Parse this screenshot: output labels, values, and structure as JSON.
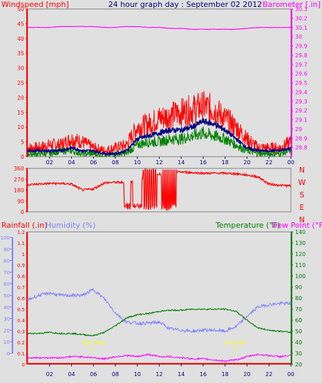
{
  "header": {
    "wind_label": "Windspeed [mph]",
    "title": "24 hour graph day : September 02 2012",
    "baro_label": "Barometer [.in]"
  },
  "panel3_labels": {
    "rain_label": "Rainfall (.in)",
    "humidity_label": "Humidity (%)",
    "temp_label": "Temperature (°F)",
    "dew_label": "Dew Point (°F)",
    "sunrise_label": "Sun Rise",
    "sunset_label": "Sun Set"
  },
  "colors": {
    "background": "#e0e0e0",
    "wind": "#ff0000",
    "wind_avg": "#000080",
    "wind_low": "#008000",
    "barometer": "#ff00ff",
    "direction": "#ff0000",
    "rain": "#ff0000",
    "humidity": "#8080ff",
    "temperature": "#008000",
    "dewpoint": "#ff00ff",
    "sun": "#ffff00",
    "title": "#000080"
  },
  "chart_data": [
    {
      "type": "line",
      "title": "24 hour graph day : September 02 2012",
      "x_ticks": [
        "02",
        "04",
        "06",
        "08",
        "10",
        "12",
        "14",
        "16",
        "18",
        "20",
        "22",
        "00"
      ],
      "ylabel": "Windspeed [mph]",
      "ylim": [
        0,
        50
      ],
      "y_ticks": [
        "0",
        "5",
        "10",
        "15",
        "20",
        "25",
        "30",
        "35",
        "40",
        "45",
        "50"
      ],
      "y2label": "Barometer [.in]",
      "y2lim": [
        28.7,
        30.3
      ],
      "y2_ticks": [
        "28.8",
        "28.9",
        "29",
        "29.1",
        "29.2",
        "29.3",
        "29.4",
        "29.5",
        "29.6",
        "29.7",
        "29.8",
        "29.9",
        "30",
        "30.1",
        "30.2",
        "30.3"
      ],
      "hours": [
        0,
        1,
        2,
        3,
        4,
        5,
        6,
        7,
        8,
        9,
        10,
        11,
        12,
        13,
        14,
        15,
        16,
        17,
        18,
        19,
        20,
        21,
        22,
        23,
        24
      ],
      "series": [
        {
          "name": "Wind Gust",
          "values": [
            3,
            3,
            4,
            4,
            6,
            5,
            3,
            2,
            3,
            4,
            10,
            11,
            13,
            14,
            15,
            16,
            17,
            16,
            13,
            10,
            6,
            3,
            3,
            3,
            5
          ]
        },
        {
          "name": "Wind Average",
          "values": [
            2,
            2,
            2,
            2,
            3,
            2,
            2,
            1,
            1,
            2,
            6,
            7,
            8,
            9,
            9,
            10,
            12,
            11,
            9,
            6,
            3,
            2,
            2,
            2,
            3
          ]
        },
        {
          "name": "Wind Low",
          "values": [
            1,
            1,
            1,
            2,
            2,
            1,
            1,
            0,
            1,
            1,
            4,
            5,
            5,
            6,
            6,
            7,
            8,
            7,
            6,
            4,
            2,
            1,
            1,
            1,
            2
          ]
        },
        {
          "name": "Barometer",
          "values": [
            30.1,
            30.1,
            30.1,
            30.11,
            30.11,
            30.11,
            30.11,
            30.1,
            30.1,
            30.11,
            30.11,
            30.1,
            30.1,
            30.09,
            30.09,
            30.08,
            30.08,
            30.08,
            30.08,
            30.08,
            30.09,
            30.1,
            30.1,
            30.1,
            30.1
          ]
        }
      ]
    },
    {
      "type": "line",
      "ylabel": "",
      "ylim": [
        0,
        360
      ],
      "y_ticks": [
        "0",
        "90",
        "180",
        "270",
        "360"
      ],
      "compass_ticks": [
        "N",
        "W",
        "S",
        "E",
        "N"
      ],
      "hours": [
        0,
        1,
        2,
        3,
        4,
        5,
        6,
        7,
        8,
        9,
        10,
        11,
        12,
        13,
        14,
        15,
        16,
        17,
        18,
        19,
        20,
        21,
        22,
        23,
        24
      ],
      "series": [
        {
          "name": "Wind Direction",
          "values": [
            225,
            230,
            235,
            235,
            230,
            180,
            190,
            240,
            245,
            240,
            260,
            300,
            310,
            330,
            330,
            325,
            320,
            320,
            320,
            315,
            305,
            290,
            230,
            220,
            215
          ]
        }
      ]
    },
    {
      "type": "line",
      "x_ticks": [
        "02",
        "04",
        "06",
        "08",
        "10",
        "12",
        "14",
        "16",
        "18",
        "20",
        "22",
        "00"
      ],
      "ylabel": "Rainfall (.in)",
      "ylim": [
        0,
        1.2
      ],
      "y_ticks": [
        "0",
        "0.1",
        "0.2",
        "0.3",
        "0.4",
        "0.5",
        "0.6",
        "0.7",
        "0.8",
        "0.9",
        "1",
        "1.1",
        "1.2"
      ],
      "humidity_ticks": [
        "0",
        "10",
        "20",
        "30",
        "40",
        "50",
        "60",
        "70",
        "80",
        "90",
        "100"
      ],
      "y2label": "Temperature (°F)",
      "y2lim": [
        20,
        140
      ],
      "y2_ticks": [
        "20",
        "30",
        "40",
        "50",
        "60",
        "70",
        "80",
        "90",
        "100",
        "110",
        "120",
        "130",
        "140"
      ],
      "hours": [
        0,
        1,
        2,
        3,
        4,
        5,
        6,
        7,
        8,
        9,
        10,
        11,
        12,
        13,
        14,
        15,
        16,
        17,
        18,
        19,
        20,
        21,
        22,
        23,
        24
      ],
      "series": [
        {
          "name": "Rainfall",
          "values": [
            0,
            0,
            0,
            0,
            0,
            0,
            0,
            0,
            0,
            0,
            0,
            0,
            0,
            0,
            0,
            0,
            0,
            0,
            0,
            0,
            0,
            0,
            0,
            0,
            0
          ]
        },
        {
          "name": "Humidity",
          "values": [
            46,
            50,
            52,
            50,
            50,
            50,
            55,
            47,
            35,
            27,
            26,
            26,
            27,
            21,
            20,
            19,
            20,
            20,
            19,
            23,
            32,
            40,
            42,
            43,
            43
          ]
        },
        {
          "name": "Temperature",
          "values": [
            48,
            48,
            49,
            48,
            48,
            47,
            46,
            49,
            55,
            62,
            65,
            66,
            68,
            69,
            69,
            70,
            70,
            70,
            70,
            68,
            60,
            53,
            51,
            50,
            49
          ]
        },
        {
          "name": "Dew Point",
          "values": [
            26,
            26,
            26,
            26,
            27,
            27,
            26,
            25,
            27,
            28,
            27,
            29,
            27,
            27,
            26,
            25,
            25,
            24,
            23,
            24,
            27,
            29,
            28,
            27,
            28
          ]
        }
      ]
    }
  ]
}
